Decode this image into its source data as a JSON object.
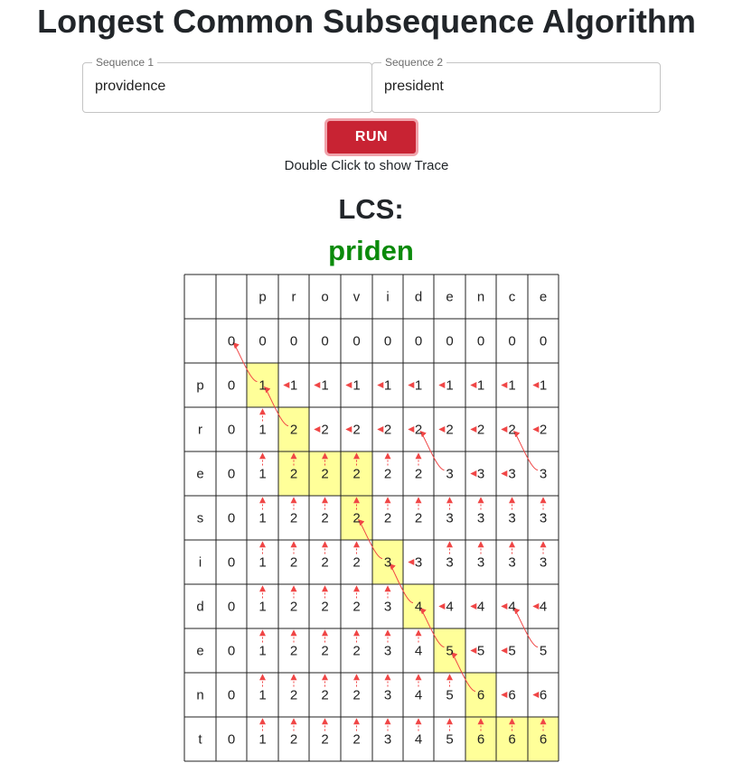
{
  "title": "Longest Common Subsequence Algorithm",
  "sequence1": {
    "label": "Sequence 1",
    "value": "providence"
  },
  "sequence2": {
    "label": "Sequence 2",
    "value": "president"
  },
  "run_label": "RUN",
  "hint": "Double Click to show Trace",
  "lcs_heading": "LCS:",
  "lcs_result": "priden",
  "colors": {
    "run": "#c82333",
    "highlight": "#ffff99",
    "arrow": "#f04646",
    "result": "#0a8a0a"
  },
  "table": {
    "col_headers": [
      "p",
      "r",
      "o",
      "v",
      "i",
      "d",
      "e",
      "n",
      "c",
      "e"
    ],
    "row_headers": [
      "p",
      "r",
      "e",
      "s",
      "i",
      "d",
      "e",
      "n",
      "t"
    ],
    "values": [
      [
        0,
        0,
        0,
        0,
        0,
        0,
        0,
        0,
        0,
        0,
        0
      ],
      [
        0,
        1,
        1,
        1,
        1,
        1,
        1,
        1,
        1,
        1,
        1
      ],
      [
        0,
        1,
        2,
        2,
        2,
        2,
        2,
        2,
        2,
        2,
        2
      ],
      [
        0,
        1,
        2,
        2,
        2,
        2,
        2,
        3,
        3,
        3,
        3
      ],
      [
        0,
        1,
        2,
        2,
        2,
        2,
        2,
        3,
        3,
        3,
        3
      ],
      [
        0,
        1,
        2,
        2,
        2,
        3,
        3,
        3,
        3,
        3,
        3
      ],
      [
        0,
        1,
        2,
        2,
        2,
        3,
        4,
        4,
        4,
        4,
        4
      ],
      [
        0,
        1,
        2,
        2,
        2,
        3,
        4,
        5,
        5,
        5,
        5
      ],
      [
        0,
        1,
        2,
        2,
        2,
        3,
        4,
        5,
        6,
        6,
        6
      ],
      [
        0,
        1,
        2,
        2,
        2,
        3,
        4,
        5,
        6,
        6,
        6
      ]
    ],
    "highlighted": [
      [
        1,
        1
      ],
      [
        2,
        2
      ],
      [
        3,
        2
      ],
      [
        3,
        3
      ],
      [
        3,
        4
      ],
      [
        4,
        4
      ],
      [
        5,
        5
      ],
      [
        6,
        6
      ],
      [
        7,
        7
      ],
      [
        8,
        8
      ],
      [
        9,
        8
      ],
      [
        9,
        9
      ],
      [
        9,
        10
      ]
    ]
  }
}
